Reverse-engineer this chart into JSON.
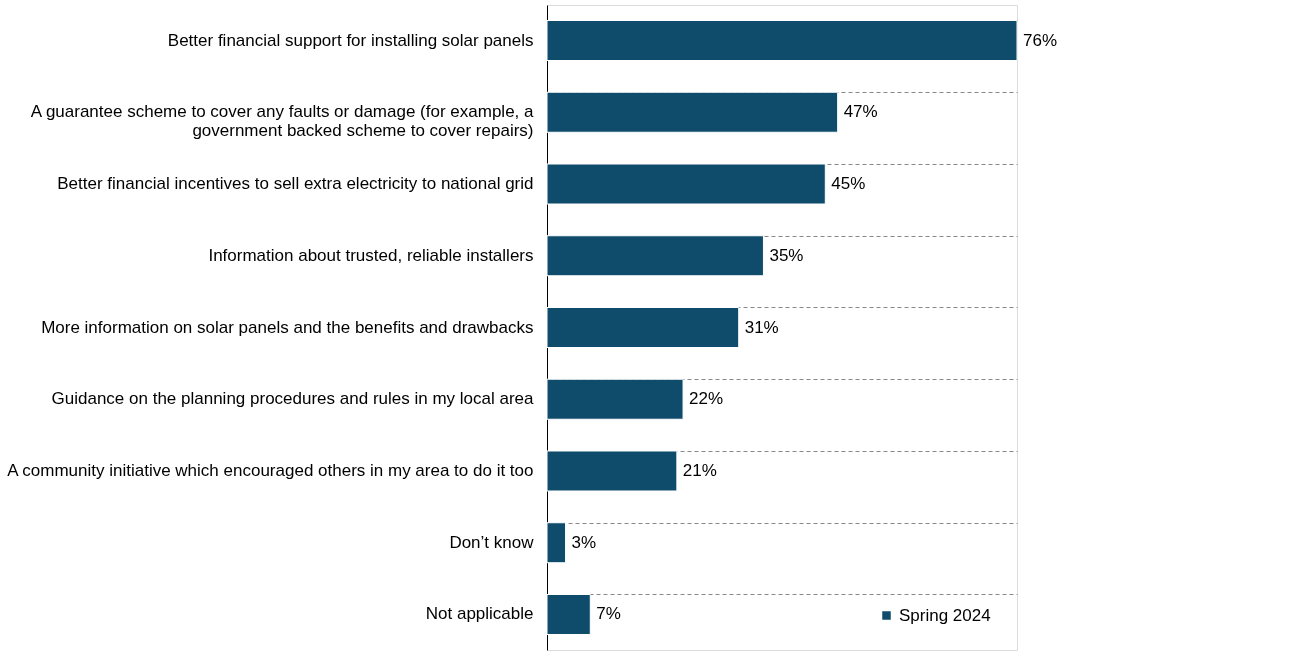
{
  "chart_data": {
    "type": "bar",
    "orientation": "horizontal",
    "categories": [
      "Better financial support for installing solar panels",
      "A guarantee scheme to cover any faults or damage (for example, a government backed scheme to cover repairs)",
      "Better financial incentives to sell extra electricity to national grid",
      "Information about trusted, reliable installers",
      "More information on solar panels and the benefits and drawbacks",
      "Guidance on the planning procedures and rules in my local area",
      "A community initiative which encouraged others in my area to do it too",
      "Don’t know",
      "Not applicable"
    ],
    "series": [
      {
        "name": "Spring 2024",
        "color": "#0f4c6b",
        "values": [
          76,
          47,
          45,
          35,
          31,
          22,
          21,
          3,
          7
        ],
        "value_labels": [
          "76%",
          "47%",
          "45%",
          "35%",
          "31%",
          "22%",
          "21%",
          "3%",
          "7%"
        ]
      }
    ],
    "grid": "y",
    "legend": "bottom right"
  }
}
